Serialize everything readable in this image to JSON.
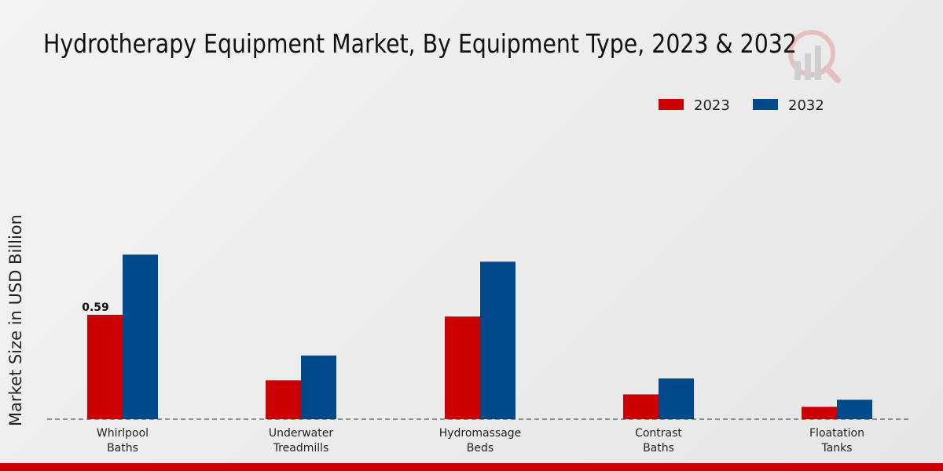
{
  "chart_data": {
    "type": "bar",
    "title": "Hydrotherapy Equipment Market, By Equipment Type, 2023 & 2032",
    "xlabel": "",
    "ylabel": "Market Size in USD Billion",
    "categories": [
      [
        "Whirlpool",
        "Baths"
      ],
      [
        "Underwater",
        "Treadmills"
      ],
      [
        "Hydromassage",
        "Beds"
      ],
      [
        "Contrast",
        "Baths"
      ],
      [
        "Floatation",
        "Tanks"
      ]
    ],
    "series": [
      {
        "name": "2023",
        "color": "#cc0000",
        "values": [
          0.59,
          0.22,
          0.58,
          0.14,
          0.07
        ]
      },
      {
        "name": "2032",
        "color": "#004a8c",
        "values": [
          0.93,
          0.36,
          0.89,
          0.23,
          0.11
        ]
      }
    ],
    "data_labels": [
      {
        "series": 0,
        "index": 0,
        "text": "0.59"
      }
    ],
    "ylim": [
      0,
      1.1
    ],
    "grid": false,
    "legend": "top-right"
  }
}
